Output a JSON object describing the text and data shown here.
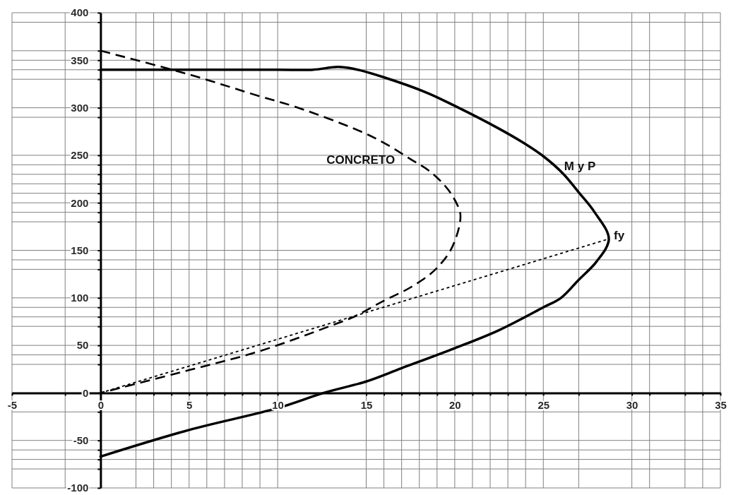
{
  "chart_data": {
    "type": "line",
    "series": [
      {
        "name": "M y P",
        "color": "#000000",
        "line_style": "solid",
        "x": [
          0,
          5,
          10,
          12,
          13.4,
          14.3,
          16,
          18.4,
          20,
          22.4,
          23.8,
          25,
          26.1,
          27,
          27.9,
          28.7,
          28,
          27,
          26,
          25,
          22.5,
          20,
          17,
          15,
          12.6,
          10,
          5,
          0
        ],
        "values": [
          340,
          340,
          340,
          340,
          343,
          341,
          332,
          316,
          302,
          279,
          264,
          249,
          231,
          211,
          190,
          162,
          138,
          119,
          100,
          90,
          66,
          47,
          26,
          12,
          0,
          -16,
          -39,
          -67
        ]
      },
      {
        "name": "CONCRETO",
        "color": "#000000",
        "line_style": "dashed",
        "x": [
          0,
          5,
          9,
          11,
          14.7,
          16.2,
          17.5,
          18.6,
          19.7,
          20.3,
          20.3,
          20.1,
          19.7,
          18.8,
          17.5,
          16,
          14.3,
          13.2,
          9,
          5,
          0
        ],
        "values": [
          360,
          335,
          312,
          301,
          275,
          261,
          246,
          233,
          212,
          190,
          180,
          165,
          148,
          128,
          111,
          97,
          80,
          72,
          44,
          24,
          0
        ]
      },
      {
        "color": "#000000",
        "line_style": "dotted",
        "x": [
          0,
          28.7
        ],
        "values": [
          0,
          162
        ]
      }
    ],
    "xlim": [
      -5,
      35
    ],
    "ylim": [
      -100,
      400
    ],
    "xticks": [
      -5,
      {
        "value": -2,
        "label": null
      },
      0,
      {
        "value": 2,
        "label": null
      },
      {
        "value": 3,
        "label": null
      },
      {
        "value": 4,
        "label": null
      },
      5,
      {
        "value": 6,
        "label": null
      },
      {
        "value": 7,
        "label": null
      },
      {
        "value": 8,
        "label": null
      },
      {
        "value": 9,
        "label": null
      },
      10,
      15,
      {
        "value": 16,
        "label": null
      },
      {
        "value": 17,
        "label": null
      },
      {
        "value": 18,
        "label": null
      },
      {
        "value": 19,
        "label": null
      },
      20,
      {
        "value": 21,
        "label": null
      },
      {
        "value": 22,
        "label": null
      },
      {
        "value": 23,
        "label": null
      },
      {
        "value": 24,
        "label": null
      },
      25,
      {
        "value": 27,
        "label": null
      },
      30,
      {
        "value": 31,
        "label": null
      },
      {
        "value": 33,
        "label": null
      },
      {
        "value": 34,
        "label": null
      },
      35
    ],
    "yticks": [
      -100,
      {
        "value": -80,
        "label": null
      },
      {
        "value": -70,
        "label": null
      },
      {
        "value": -60,
        "label": null
      },
      -50,
      {
        "value": -20,
        "label": null
      },
      0,
      {
        "value": 30,
        "label": null
      },
      {
        "value": 40,
        "label": null
      },
      50,
      {
        "value": 70,
        "label": null
      },
      {
        "value": 80,
        "label": null
      },
      {
        "value": 90,
        "label": null
      },
      100,
      {
        "value": 130,
        "label": null
      },
      {
        "value": 140,
        "label": null
      },
      150,
      {
        "value": 180,
        "label": null
      },
      {
        "value": 190,
        "label": null
      },
      200,
      {
        "value": 210,
        "label": null
      },
      {
        "value": 220,
        "label": null
      },
      {
        "value": 230,
        "label": null
      },
      {
        "value": 240,
        "label": null
      },
      250,
      {
        "value": 290,
        "label": null
      },
      300,
      {
        "value": 330,
        "label": null
      },
      {
        "value": 340,
        "label": null
      },
      350,
      {
        "value": 360,
        "label": null
      },
      {
        "value": 390,
        "label": null
      },
      400
    ],
    "grid": true,
    "annotations": [
      {
        "text": "fy",
        "x": 28.7,
        "y": 162
      }
    ]
  }
}
